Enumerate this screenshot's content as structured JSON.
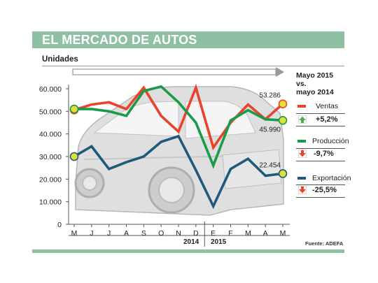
{
  "header": {
    "title": "EL MERCADO DE AUTOS"
  },
  "units_label": "Unidades",
  "legend": {
    "title_lines": [
      "Mayo 2015",
      "vs.",
      "mayo 2014"
    ],
    "items": [
      {
        "name": "Ventas",
        "pct": "+5,2%",
        "color": "#e8432d",
        "direction": "up"
      },
      {
        "name": "Producción",
        "pct": "-9,7%",
        "color": "#1a9a4b",
        "direction": "down"
      },
      {
        "name": "Exportación",
        "pct": "-25,5%",
        "color": "#1e5a7a",
        "direction": "down"
      }
    ]
  },
  "source": "Fuente: ADEFA",
  "chart_data": {
    "type": "line",
    "categories": [
      "M",
      "J",
      "J",
      "A",
      "S",
      "O",
      "N",
      "D",
      "E",
      "F",
      "M",
      "A",
      "M"
    ],
    "years": [
      {
        "label": "2014",
        "from": 0,
        "to": 7
      },
      {
        "label": "2015",
        "from": 8,
        "to": 12
      }
    ],
    "ylim": [
      0,
      60000
    ],
    "yticks": [
      0,
      10000,
      20000,
      30000,
      40000,
      50000,
      60000
    ],
    "ytick_labels": [
      "0",
      "10.000",
      "20.000",
      "30.000",
      "40.000",
      "50.000",
      "60.000"
    ],
    "grid": false,
    "series": [
      {
        "name": "Ventas",
        "color": "#e8432d",
        "values": [
          50600,
          53000,
          54000,
          51000,
          60500,
          48000,
          41000,
          60500,
          34000,
          45000,
          53000,
          46500,
          53286
        ]
      },
      {
        "name": "Producción",
        "color": "#1a9a4b",
        "values": [
          51000,
          51000,
          50000,
          48000,
          59000,
          61000,
          54000,
          45000,
          26000,
          46000,
          50500,
          46500,
          45990
        ]
      },
      {
        "name": "Exportación",
        "color": "#1e5a7a",
        "values": [
          30000,
          34500,
          24500,
          27500,
          30000,
          36500,
          39000,
          24000,
          8000,
          24500,
          29000,
          21500,
          22454
        ]
      }
    ],
    "annotations": [
      {
        "text": "53.286",
        "series": 0,
        "index": 12
      },
      {
        "text": "45.990",
        "series": 1,
        "index": 12
      },
      {
        "text": "22.454",
        "series": 2,
        "index": 12
      }
    ]
  }
}
